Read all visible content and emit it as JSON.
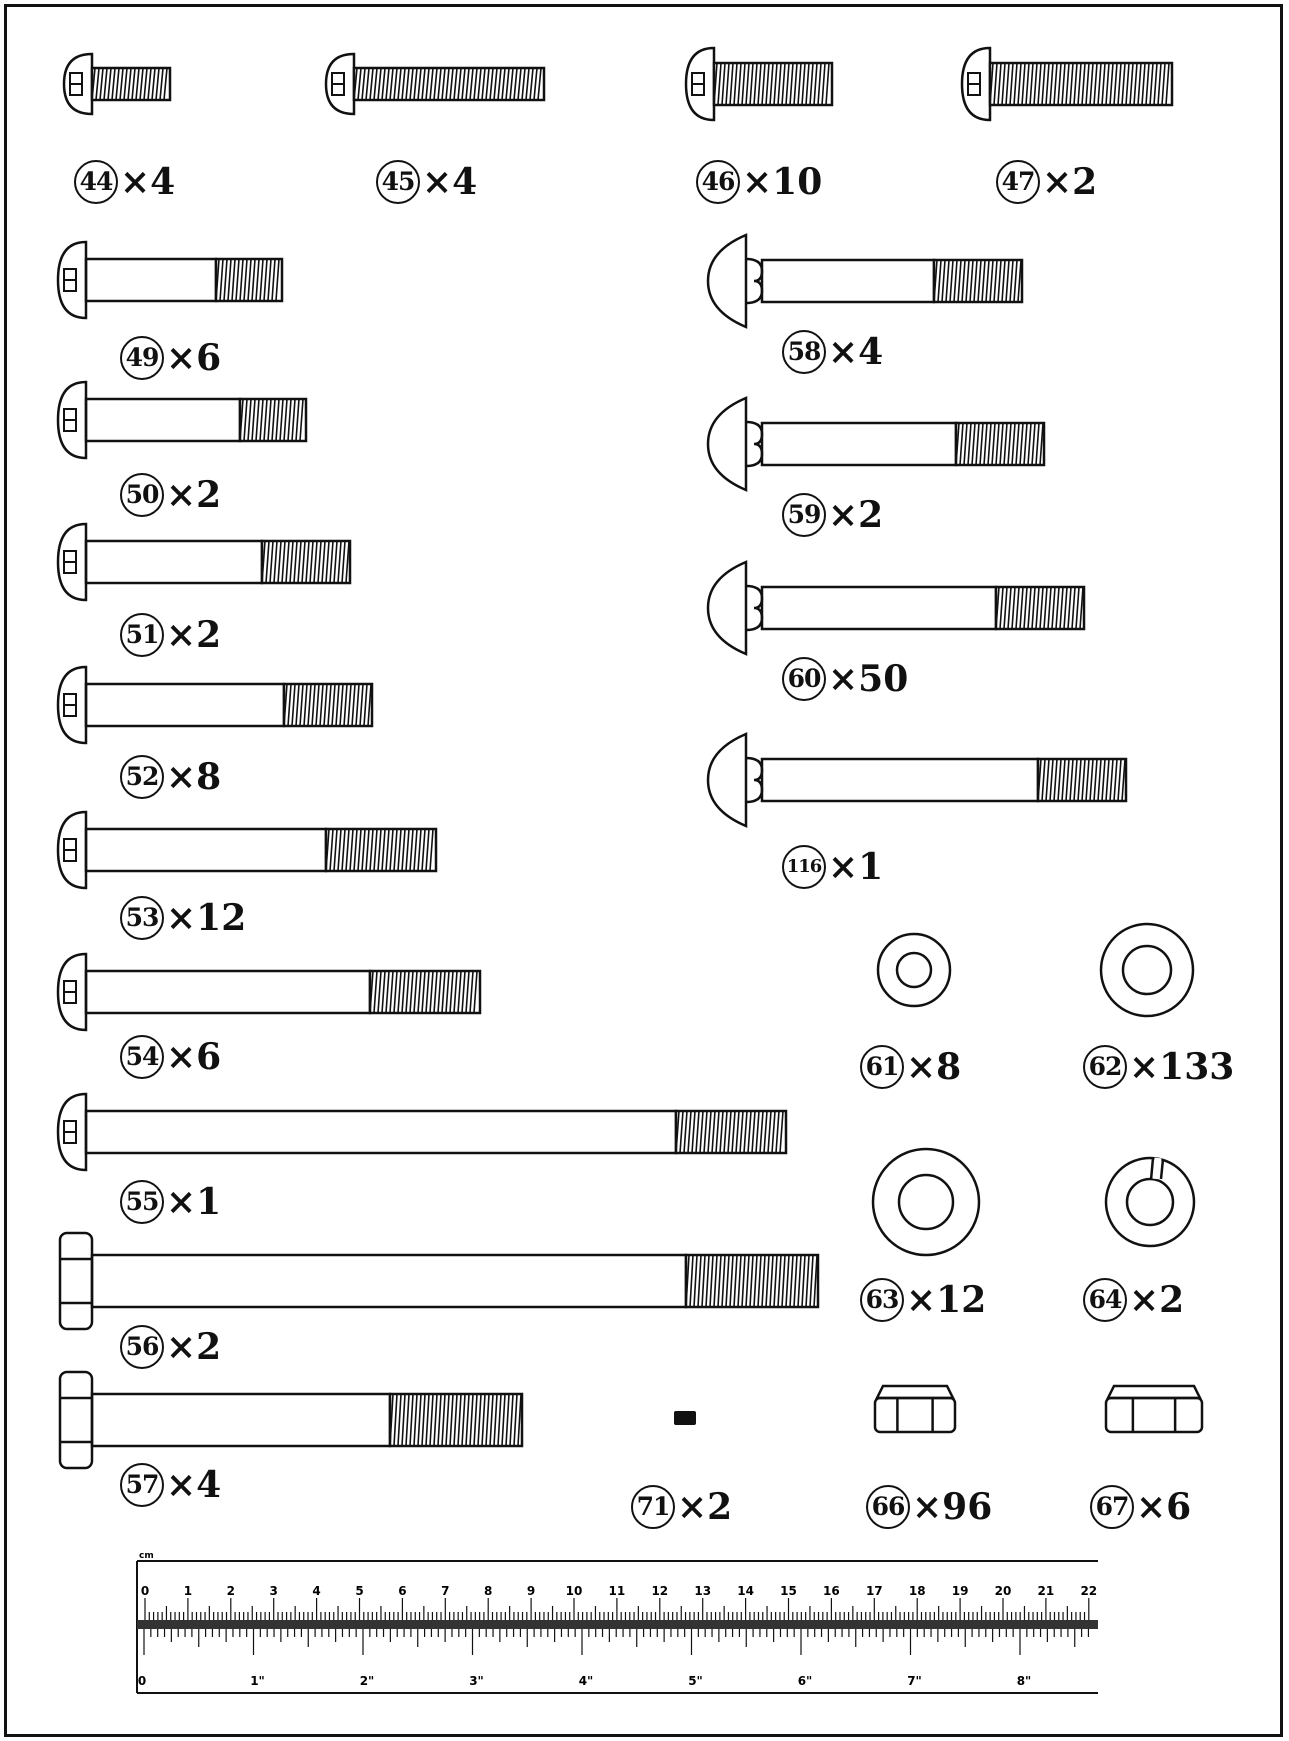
{
  "parts": [
    {
      "id": "44",
      "qty": "×4"
    },
    {
      "id": "45",
      "qty": "×4"
    },
    {
      "id": "46",
      "qty": "×10"
    },
    {
      "id": "47",
      "qty": "×2"
    },
    {
      "id": "49",
      "qty": "×6"
    },
    {
      "id": "50",
      "qty": "×2"
    },
    {
      "id": "51",
      "qty": "×2"
    },
    {
      "id": "52",
      "qty": "×8"
    },
    {
      "id": "53",
      "qty": "×12"
    },
    {
      "id": "54",
      "qty": "×6"
    },
    {
      "id": "55",
      "qty": "×1"
    },
    {
      "id": "56",
      "qty": "×2"
    },
    {
      "id": "57",
      "qty": "×4"
    },
    {
      "id": "58",
      "qty": "×4"
    },
    {
      "id": "59",
      "qty": "×2"
    },
    {
      "id": "60",
      "qty": "×50"
    },
    {
      "id": "116",
      "qty": "×1"
    },
    {
      "id": "61",
      "qty": "×8"
    },
    {
      "id": "62",
      "qty": "×133"
    },
    {
      "id": "63",
      "qty": "×12"
    },
    {
      "id": "64",
      "qty": "×2"
    },
    {
      "id": "71",
      "qty": "×2"
    },
    {
      "id": "66",
      "qty": "×96"
    },
    {
      "id": "67",
      "qty": "×6"
    }
  ],
  "ruler": {
    "cm_unit": "cm",
    "cm_ticks": [
      "0",
      "1",
      "2",
      "3",
      "4",
      "5",
      "6",
      "7",
      "8",
      "9",
      "10",
      "11",
      "12",
      "13",
      "14",
      "15",
      "16",
      "17",
      "18",
      "19",
      "20",
      "21",
      "22"
    ],
    "inch_ticks": [
      "0",
      "1\"",
      "2\"",
      "3\"",
      "4\"",
      "5\"",
      "6\"",
      "7\"",
      "8\""
    ]
  }
}
